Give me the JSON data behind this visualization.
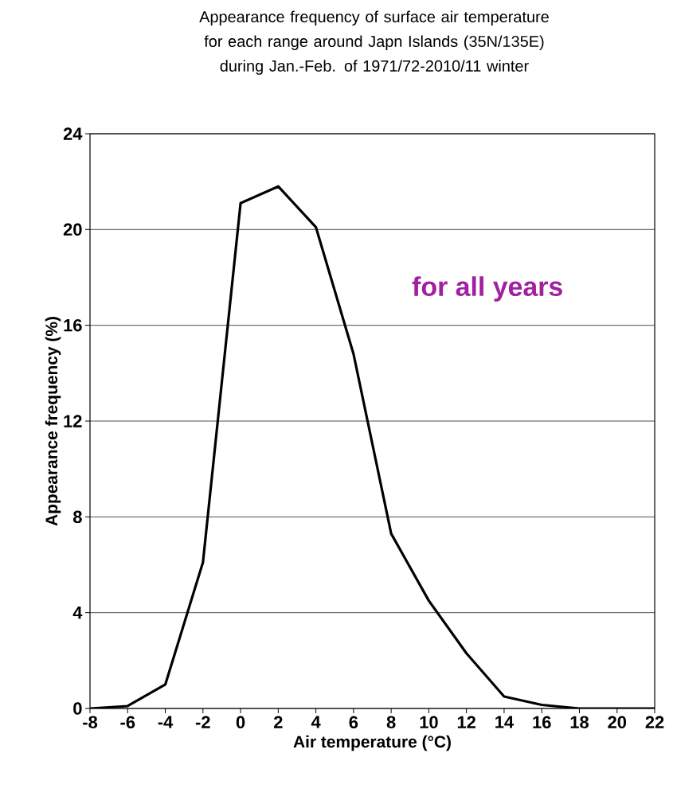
{
  "chart_data": {
    "type": "line",
    "title": "Appearance frequency of surface air temperature for each range around Japn Islands (35N/135E) during Jan.-Feb. of 1971/72-2010/11 winter",
    "xlabel": "Air temperature (°C)",
    "ylabel": "Appearance frequency (%)",
    "annotations": [
      "for all years"
    ],
    "x": [
      -8,
      -6,
      -4,
      -2,
      0,
      2,
      4,
      6,
      8,
      10,
      12,
      14,
      16,
      18,
      20,
      22
    ],
    "series": [
      {
        "color": "#000000",
        "values": [
          0,
          0.1,
          1.0,
          6.1,
          21.1,
          21.8,
          20.1,
          14.8,
          7.3,
          4.5,
          2.3,
          0.5,
          0.15,
          0,
          0,
          0
        ]
      }
    ],
    "xlim": [
      -8,
      22
    ],
    "ylim": [
      0,
      24
    ],
    "xticks": [
      -8,
      -6,
      -4,
      -2,
      0,
      2,
      4,
      6,
      8,
      10,
      12,
      14,
      16,
      18,
      20,
      22
    ],
    "yticks": [
      0,
      4,
      8,
      12,
      16,
      20,
      24
    ],
    "grid": "y",
    "marker": "none",
    "line_style": "solid"
  }
}
